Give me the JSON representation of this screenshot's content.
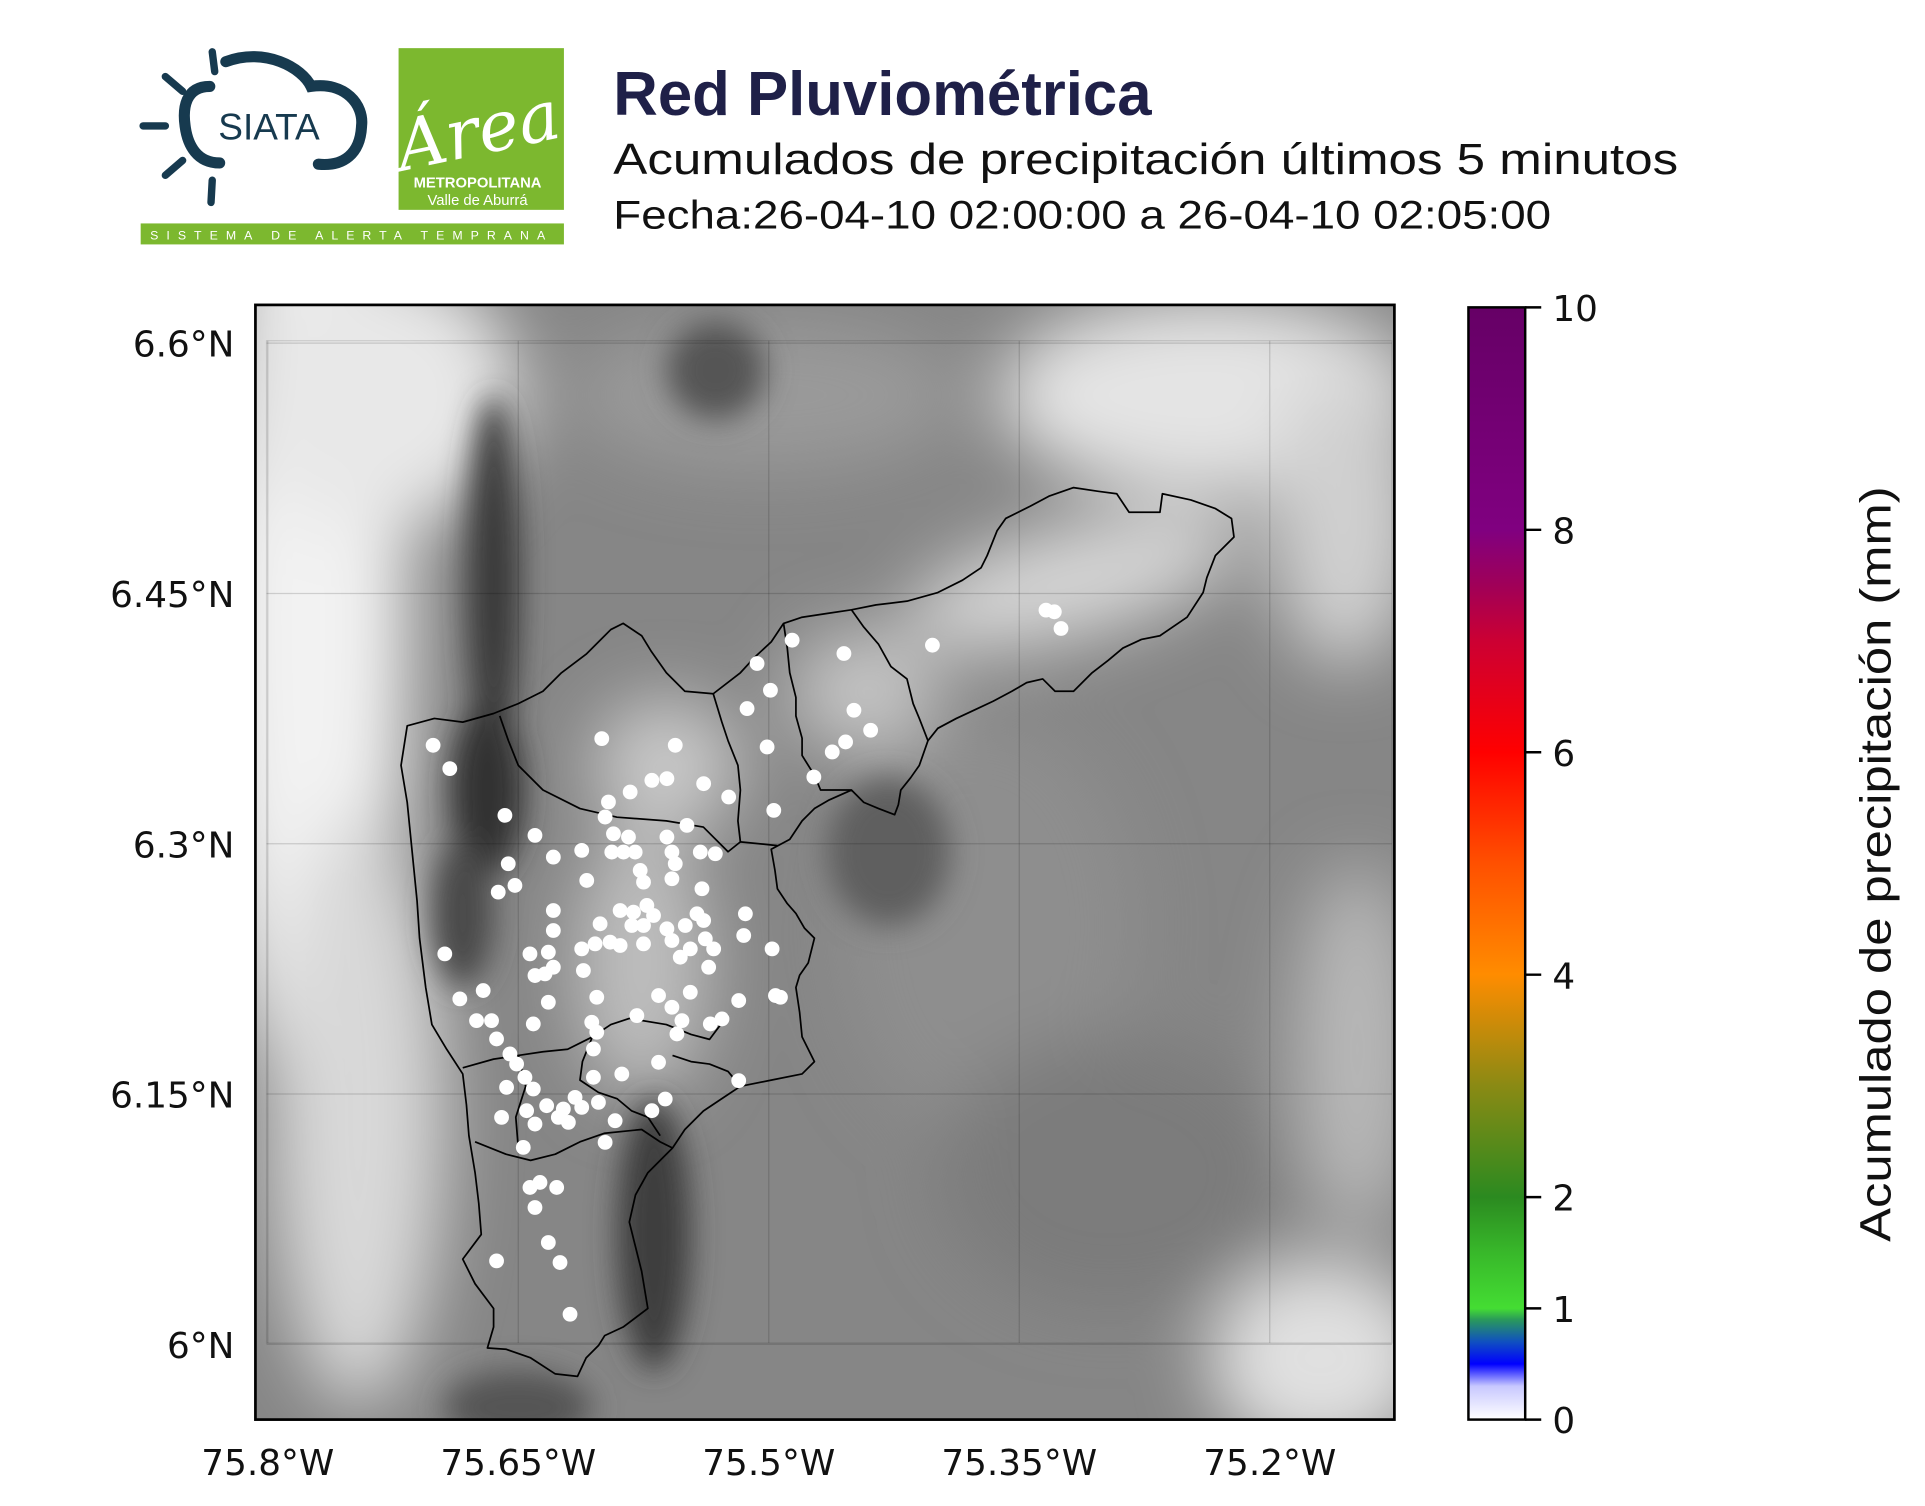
{
  "header": {
    "title": "Red Pluviométrica",
    "subtitle": "Acumulados de precipitación últimos 5 minutos",
    "date_line": "Fecha:26-04-10 02:00:00 a 26-04-10 02:05:00",
    "title_color": "#1f2048"
  },
  "logos": {
    "siata": {
      "text": "SIATA",
      "color": "#173a4f"
    },
    "area": {
      "script_text": "Área",
      "line1": "METROPOLITANA",
      "line2": "Valle de Aburrá",
      "color": "#7cb82f"
    },
    "strip_text": "SISTEMA DE ALERTA TEMPRANA"
  },
  "chart_data": {
    "type": "scatter",
    "title": "",
    "xlabel": "",
    "ylabel": "",
    "xlim": [
      -75.807,
      -75.125
    ],
    "ylim": [
      5.955,
      6.623
    ],
    "grid": true,
    "xticks": [
      {
        "value": -75.8,
        "label": "75.8°W"
      },
      {
        "value": -75.65,
        "label": "75.65°W"
      },
      {
        "value": -75.5,
        "label": "75.5°W"
      },
      {
        "value": -75.35,
        "label": "75.35°W"
      },
      {
        "value": -75.2,
        "label": "75.2°W"
      }
    ],
    "yticks": [
      {
        "value": 6.6,
        "label": "6.6°N"
      },
      {
        "value": 6.45,
        "label": "6.45°N"
      },
      {
        "value": 6.3,
        "label": "6.3°N"
      },
      {
        "value": 6.15,
        "label": "6.15°N"
      },
      {
        "value": 6.0,
        "label": "6°N"
      }
    ],
    "background": "grayscale elevation (terrain) with municipal boundaries",
    "station_color": "#ffffff",
    "station_value_mm": 0,
    "stations": [
      [
        -75.701,
        6.359
      ],
      [
        -75.691,
        6.345
      ],
      [
        -75.658,
        6.317
      ],
      [
        -75.656,
        6.288
      ],
      [
        -75.662,
        6.271
      ],
      [
        -75.652,
        6.275
      ],
      [
        -75.64,
        6.305
      ],
      [
        -75.629,
        6.292
      ],
      [
        -75.612,
        6.296
      ],
      [
        -75.6,
        6.363
      ],
      [
        -75.556,
        6.359
      ],
      [
        -75.596,
        6.325
      ],
      [
        -75.598,
        6.316
      ],
      [
        -75.583,
        6.331
      ],
      [
        -75.57,
        6.338
      ],
      [
        -75.561,
        6.339
      ],
      [
        -75.539,
        6.336
      ],
      [
        -75.524,
        6.328
      ],
      [
        -75.549,
        6.311
      ],
      [
        -75.593,
        6.306
      ],
      [
        -75.584,
        6.304
      ],
      [
        -75.58,
        6.295
      ],
      [
        -75.587,
        6.295
      ],
      [
        -75.594,
        6.295
      ],
      [
        -75.577,
        6.284
      ],
      [
        -75.575,
        6.277
      ],
      [
        -75.561,
        6.304
      ],
      [
        -75.558,
        6.295
      ],
      [
        -75.556,
        6.288
      ],
      [
        -75.541,
        6.295
      ],
      [
        -75.532,
        6.294
      ],
      [
        -75.558,
        6.279
      ],
      [
        -75.573,
        6.263
      ],
      [
        -75.54,
        6.273
      ],
      [
        -75.609,
        6.278
      ],
      [
        -75.629,
        6.26
      ],
      [
        -75.629,
        6.248
      ],
      [
        -75.589,
        6.26
      ],
      [
        -75.581,
        6.259
      ],
      [
        -75.601,
        6.252
      ],
      [
        -75.595,
        6.241
      ],
      [
        -75.582,
        6.251
      ],
      [
        -75.575,
        6.251
      ],
      [
        -75.569,
        6.257
      ],
      [
        -75.561,
        6.249
      ],
      [
        -75.55,
        6.251
      ],
      [
        -75.543,
        6.258
      ],
      [
        -75.539,
        6.254
      ],
      [
        -75.538,
        6.243
      ],
      [
        -75.533,
        6.237
      ],
      [
        -75.547,
        6.237
      ],
      [
        -75.553,
        6.232
      ],
      [
        -75.558,
        6.242
      ],
      [
        -75.575,
        6.24
      ],
      [
        -75.589,
        6.239
      ],
      [
        -75.604,
        6.24
      ],
      [
        -75.612,
        6.237
      ],
      [
        -75.611,
        6.224
      ],
      [
        -75.629,
        6.226
      ],
      [
        -75.643,
        6.234
      ],
      [
        -75.632,
        6.235
      ],
      [
        -75.64,
        6.221
      ],
      [
        -75.634,
        6.222
      ],
      [
        -75.603,
        6.208
      ],
      [
        -75.579,
        6.197
      ],
      [
        -75.566,
        6.209
      ],
      [
        -75.558,
        6.202
      ],
      [
        -75.552,
        6.194
      ],
      [
        -75.547,
        6.211
      ],
      [
        -75.536,
        6.226
      ],
      [
        -75.528,
        6.195
      ],
      [
        -75.518,
        6.206
      ],
      [
        -75.515,
        6.245
      ],
      [
        -75.514,
        6.258
      ],
      [
        -75.498,
        6.237
      ],
      [
        -75.496,
        6.209
      ],
      [
        -75.493,
        6.208
      ],
      [
        -75.694,
        6.234
      ],
      [
        -75.685,
        6.207
      ],
      [
        -75.671,
        6.212
      ],
      [
        -75.675,
        6.194
      ],
      [
        -75.666,
        6.194
      ],
      [
        -75.663,
        6.183
      ],
      [
        -75.641,
        6.192
      ],
      [
        -75.632,
        6.205
      ],
      [
        -75.655,
        6.174
      ],
      [
        -75.651,
        6.168
      ],
      [
        -75.646,
        6.16
      ],
      [
        -75.641,
        6.153
      ],
      [
        -75.657,
        6.154
      ],
      [
        -75.66,
        6.136
      ],
      [
        -75.645,
        6.14
      ],
      [
        -75.64,
        6.132
      ],
      [
        -75.633,
        6.143
      ],
      [
        -75.626,
        6.136
      ],
      [
        -75.62,
        6.133
      ],
      [
        -75.623,
        6.141
      ],
      [
        -75.616,
        6.148
      ],
      [
        -75.612,
        6.142
      ],
      [
        -75.606,
        6.193
      ],
      [
        -75.603,
        6.187
      ],
      [
        -75.605,
        6.177
      ],
      [
        -75.605,
        6.16
      ],
      [
        -75.602,
        6.145
      ],
      [
        -75.598,
        6.121
      ],
      [
        -75.588,
        6.162
      ],
      [
        -75.592,
        6.134
      ],
      [
        -75.57,
        6.14
      ],
      [
        -75.562,
        6.147
      ],
      [
        -75.566,
        6.169
      ],
      [
        -75.555,
        6.186
      ],
      [
        -75.535,
        6.192
      ],
      [
        -75.518,
        6.158
      ],
      [
        -75.647,
        6.118
      ],
      [
        -75.643,
        6.094
      ],
      [
        -75.637,
        6.097
      ],
      [
        -75.627,
        6.094
      ],
      [
        -75.64,
        6.082
      ],
      [
        -75.632,
        6.061
      ],
      [
        -75.625,
        6.049
      ],
      [
        -75.663,
        6.05
      ],
      [
        -75.619,
        6.018
      ],
      [
        -75.486,
        6.422
      ],
      [
        -75.507,
        6.408
      ],
      [
        -75.499,
        6.392
      ],
      [
        -75.513,
        6.381
      ],
      [
        -75.501,
        6.358
      ],
      [
        -75.473,
        6.34
      ],
      [
        -75.497,
        6.32
      ],
      [
        -75.455,
        6.414
      ],
      [
        -75.449,
        6.38
      ],
      [
        -75.439,
        6.368
      ],
      [
        -75.454,
        6.361
      ],
      [
        -75.462,
        6.355
      ],
      [
        -75.402,
        6.419
      ],
      [
        -75.334,
        6.44
      ],
      [
        -75.329,
        6.439
      ],
      [
        -75.325,
        6.429
      ]
    ]
  },
  "colorbar": {
    "label": "Acumulado de precipitación (mm)",
    "range": [
      0,
      10
    ],
    "ticks": [
      {
        "value": 0,
        "label": "0"
      },
      {
        "value": 1,
        "label": "1"
      },
      {
        "value": 2,
        "label": "2"
      },
      {
        "value": 4,
        "label": "4"
      },
      {
        "value": 6,
        "label": "6"
      },
      {
        "value": 8,
        "label": "8"
      },
      {
        "value": 10,
        "label": "10"
      }
    ],
    "stops": [
      {
        "value": 0,
        "color": "#ffffff"
      },
      {
        "value": 0.3,
        "color": "#c8c8ff"
      },
      {
        "value": 0.5,
        "color": "#0000ff"
      },
      {
        "value": 0.7,
        "color": "#1050c0"
      },
      {
        "value": 0.9,
        "color": "#2a9a5a"
      },
      {
        "value": 1.0,
        "color": "#44dd33"
      },
      {
        "value": 1.5,
        "color": "#38b82a"
      },
      {
        "value": 2.0,
        "color": "#2b8a20"
      },
      {
        "value": 3.0,
        "color": "#8a8a14"
      },
      {
        "value": 4.0,
        "color": "#ff8c00"
      },
      {
        "value": 5.0,
        "color": "#ff5000"
      },
      {
        "value": 6.0,
        "color": "#ff0000"
      },
      {
        "value": 7.0,
        "color": "#cc0033"
      },
      {
        "value": 7.5,
        "color": "#a00058"
      },
      {
        "value": 8.0,
        "color": "#800080"
      },
      {
        "value": 10.0,
        "color": "#660066"
      }
    ]
  }
}
